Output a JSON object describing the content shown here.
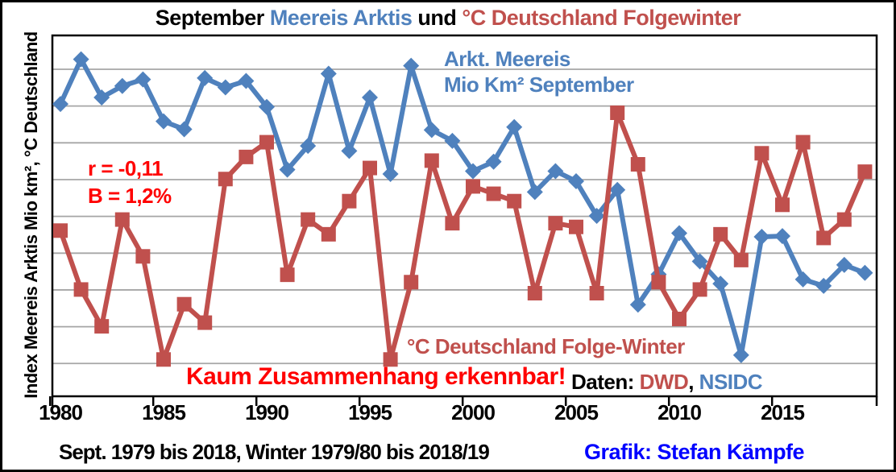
{
  "title": {
    "part1": "September ",
    "part2": "Meereis Arktis ",
    "part3": "und ",
    "part4": "°C Deutschland Folgewinter"
  },
  "y_axis_label": "Index Meereis Arktis Mio km², °C Deutschland",
  "annotations": {
    "ice_label_line1": "Arkt. Meereis",
    "ice_label_line2": "Mio Km² September",
    "r_value": "r = -0,11",
    "b_value": "B = 1,2%",
    "temp_label": "°C Deutschland Folge-Winter",
    "conclusion": "Kaum Zusammenhang erkennbar!",
    "source_prefix": "Daten: ",
    "source_dwd": "DWD",
    "source_sep": ", ",
    "source_nsidc": "NSIDC"
  },
  "footer": {
    "caption": "Sept. 1979 bis 2018, Winter 1979/80 bis 2018/19",
    "credit": "Grafik: Stefan Kämpfe"
  },
  "colors": {
    "ice_blue": "#4F81BD",
    "temp_red": "#C0504D",
    "accent_red": "#FF0000",
    "credit_blue": "#0000FF",
    "text_black": "#000000",
    "gridline": "#A6A6A6"
  },
  "chart_data": {
    "type": "line",
    "x": [
      1979,
      1980,
      1981,
      1982,
      1983,
      1984,
      1985,
      1986,
      1987,
      1988,
      1989,
      1990,
      1991,
      1992,
      1993,
      1994,
      1995,
      1996,
      1997,
      1998,
      1999,
      2000,
      2001,
      2002,
      2003,
      2004,
      2005,
      2006,
      2007,
      2008,
      2009,
      2010,
      2011,
      2012,
      2013,
      2014,
      2015,
      2016,
      2017,
      2018
    ],
    "x_note": "x = September year; paired winter value is for year/year+1; x tick label marks the winter year",
    "x_tick_years": [
      1980,
      1985,
      1990,
      1995,
      2000,
      2005,
      2010,
      2015
    ],
    "y_axis_tick_labels_visible": false,
    "grid": "horizontal",
    "legend_position": "text-annotations-inside-plot",
    "series": [
      {
        "name": "Arkt. Meereis Mio Km² September",
        "unit": "Mio km²",
        "color": "#4F81BD",
        "marker": "diamond",
        "ylim_hint": [
          3.0,
          8.0
        ],
        "values": [
          7.05,
          7.67,
          7.14,
          7.3,
          7.39,
          6.81,
          6.7,
          7.41,
          7.28,
          7.37,
          7.01,
          6.14,
          6.47,
          7.47,
          6.4,
          7.14,
          6.08,
          7.58,
          6.69,
          6.54,
          6.12,
          6.25,
          6.73,
          5.83,
          6.12,
          5.98,
          5.5,
          5.86,
          4.27,
          4.69,
          5.26,
          4.87,
          4.56,
          3.57,
          5.21,
          5.22,
          4.62,
          4.53,
          4.82,
          4.71
        ]
      },
      {
        "name": "°C Deutschland Folge-Winter",
        "unit": "°C",
        "color": "#C0504D",
        "marker": "square",
        "ylim_hint": [
          -3.3,
          6.5
        ],
        "values": [
          1.2,
          -0.4,
          -1.4,
          1.5,
          0.5,
          -2.3,
          -0.8,
          -1.3,
          2.6,
          3.2,
          3.6,
          0.0,
          1.5,
          1.1,
          2.0,
          2.9,
          -2.3,
          -0.2,
          3.1,
          1.4,
          2.4,
          2.2,
          2.0,
          -0.5,
          1.4,
          1.3,
          -0.5,
          4.4,
          3.0,
          -0.2,
          -1.2,
          -0.4,
          1.1,
          0.4,
          3.3,
          1.9,
          3.6,
          1.0,
          1.5,
          2.8
        ]
      }
    ]
  }
}
